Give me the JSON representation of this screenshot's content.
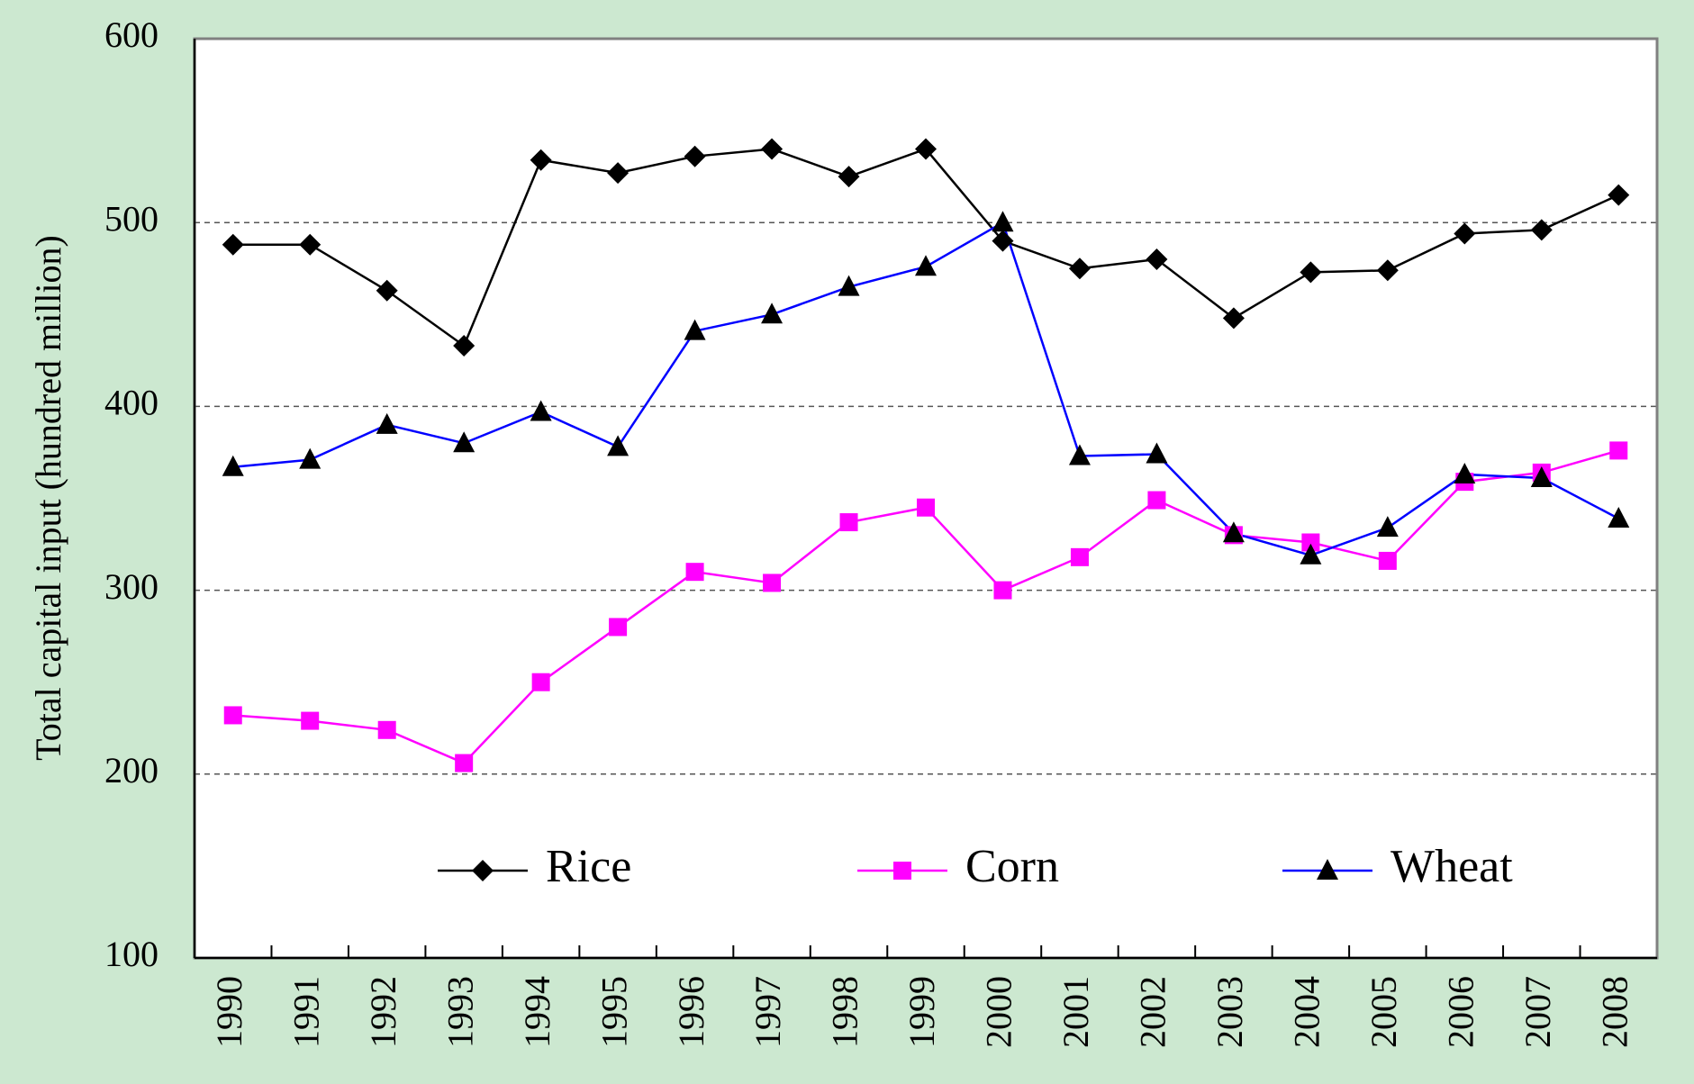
{
  "chart_data": {
    "type": "line",
    "y_label": "Total capital input (hundred million)",
    "categories": [
      "1990",
      "1991",
      "1992",
      "1993",
      "1994",
      "1995",
      "1996",
      "1997",
      "1998",
      "1999",
      "2000",
      "2001",
      "2002",
      "2003",
      "2004",
      "2005",
      "2006",
      "2007",
      "2008"
    ],
    "series": [
      {
        "name": "Rice",
        "color": "#000000",
        "marker": "diamond",
        "values": [
          488,
          488,
          463,
          433,
          534,
          527,
          536,
          540,
          525,
          540,
          490,
          475,
          480,
          448,
          473,
          474,
          494,
          496,
          515
        ]
      },
      {
        "name": "Corn",
        "color": "#ff00ff",
        "marker": "square",
        "values": [
          232,
          229,
          224,
          206,
          250,
          280,
          310,
          304,
          337,
          345,
          300,
          318,
          349,
          330,
          326,
          316,
          359,
          364,
          376
        ]
      },
      {
        "name": "Wheat",
        "color": "#0000ff",
        "marker": "triangle",
        "values": [
          367,
          371,
          390,
          380,
          397,
          378,
          441,
          450,
          465,
          476,
          500,
          373,
          374,
          331,
          319,
          334,
          363,
          361,
          339
        ]
      }
    ],
    "ylim": [
      100,
      600
    ],
    "yticks": [
      100,
      200,
      300,
      400,
      500,
      600
    ],
    "grid": true
  }
}
